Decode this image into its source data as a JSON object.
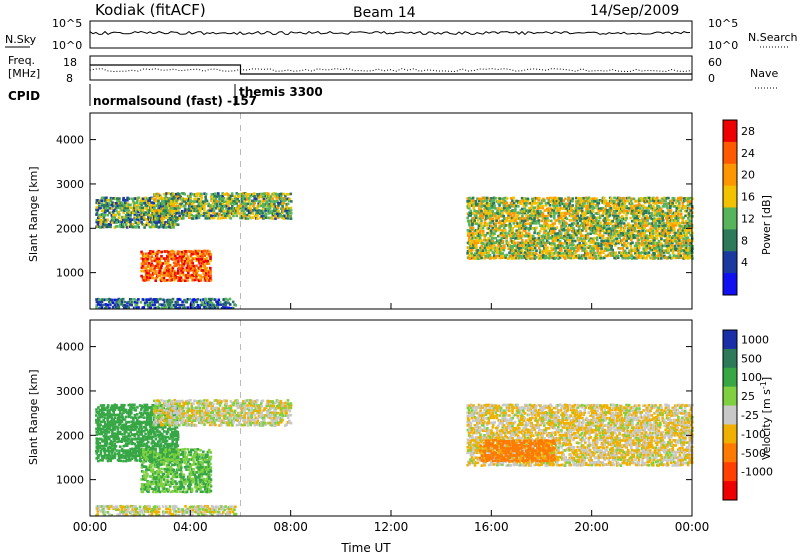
{
  "header": {
    "radar": "Kodiak (fitACF)",
    "beam": "Beam 14",
    "date": "14/Sep/2009"
  },
  "panel_labels": {
    "nsky": "N.Sky",
    "nsearch": "N.Search",
    "freq_line1": "Freq.",
    "freq_line2": "[MHz]",
    "nave": "Nave",
    "cpid": "CPID",
    "nsky_ticks": [
      "10^5",
      "10^0"
    ],
    "nsearch_ticks": [
      "10^5",
      "10^0"
    ],
    "freq_ticks": [
      "18",
      "8"
    ],
    "nave_ticks": [
      "60",
      "0"
    ],
    "cpid_text_1": "normalsound (fast) -157",
    "cpid_text_2": "themis 3300"
  },
  "colorbars": {
    "power": {
      "label": "Power [dB]",
      "ticks": [
        "28",
        "24",
        "20",
        "16",
        "12",
        "8",
        "4"
      ],
      "colors": [
        "#ee0000",
        "#ff5a00",
        "#ff9600",
        "#f2c200",
        "#57b45a",
        "#2d7a5a",
        "#1a3aa0",
        "#1010f0"
      ]
    },
    "velocity": {
      "label": "Velocity [m s^-1]",
      "ticks": [
        "1000",
        "500",
        "100",
        "25",
        "-25",
        "-100",
        "-500",
        "-1000"
      ],
      "colors": [
        "#1a2ea8",
        "#2d7a5a",
        "#37a745",
        "#7ed040",
        "#c8c8c8",
        "#f0b000",
        "#ff7a00",
        "#ff4000",
        "#ee0000"
      ]
    }
  },
  "chart_data": [
    {
      "type": "heatmap",
      "title": "Power",
      "ylabel": "Slant Range [km]",
      "xlabel": "",
      "x_ticks": [
        "00:00",
        "04:00",
        "08:00",
        "12:00",
        "16:00",
        "20:00",
        "00:00"
      ],
      "y_ticks": [
        "1000",
        "2000",
        "3000",
        "4000"
      ],
      "ylim": [
        180,
        4600
      ],
      "xlim": [
        0,
        24
      ],
      "colorbar_ticks": [
        "28",
        "24",
        "20",
        "16",
        "12",
        "8",
        "4"
      ],
      "regions": [
        {
          "t": [
            0.2,
            5.8
          ],
          "r": [
            180,
            420
          ],
          "values": "mixed ground scatter"
        },
        {
          "t": [
            0.2,
            3.5
          ],
          "r": [
            2000,
            2700
          ],
          "level_db": 12
        },
        {
          "t": [
            2.0,
            4.8
          ],
          "r": [
            800,
            1500
          ],
          "level_db": 26
        },
        {
          "t": [
            2.5,
            8.0
          ],
          "r": [
            2200,
            2800
          ],
          "level_db": 14
        },
        {
          "t": [
            15.0,
            24.0
          ],
          "r": [
            1300,
            2700
          ],
          "level_db": 16
        }
      ]
    },
    {
      "type": "heatmap",
      "title": "Velocity",
      "ylabel": "Slant Range [km]",
      "xlabel": "Time UT",
      "x_ticks": [
        "00:00",
        "04:00",
        "08:00",
        "12:00",
        "16:00",
        "20:00",
        "00:00"
      ],
      "y_ticks": [
        "1000",
        "2000",
        "3000",
        "4000"
      ],
      "ylim": [
        180,
        4600
      ],
      "xlim": [
        0,
        24
      ],
      "colorbar_ticks": [
        "1000",
        "500",
        "100",
        "25",
        "-25",
        "-100",
        "-500",
        "-1000"
      ],
      "regions": [
        {
          "t": [
            0.2,
            5.8
          ],
          "r": [
            180,
            420
          ],
          "values": "mixed small velocities"
        },
        {
          "t": [
            0.2,
            3.5
          ],
          "r": [
            1400,
            2700
          ],
          "velocity": 200
        },
        {
          "t": [
            2.0,
            4.8
          ],
          "r": [
            700,
            1700
          ],
          "velocity": 100
        },
        {
          "t": [
            2.5,
            8.0
          ],
          "r": [
            2200,
            2800
          ],
          "velocity": 0
        },
        {
          "t": [
            15.0,
            24.0
          ],
          "r": [
            1300,
            2700
          ],
          "velocity": -20
        },
        {
          "t": [
            15.5,
            18.5
          ],
          "r": [
            1400,
            1900
          ],
          "velocity": -150
        }
      ]
    }
  ]
}
